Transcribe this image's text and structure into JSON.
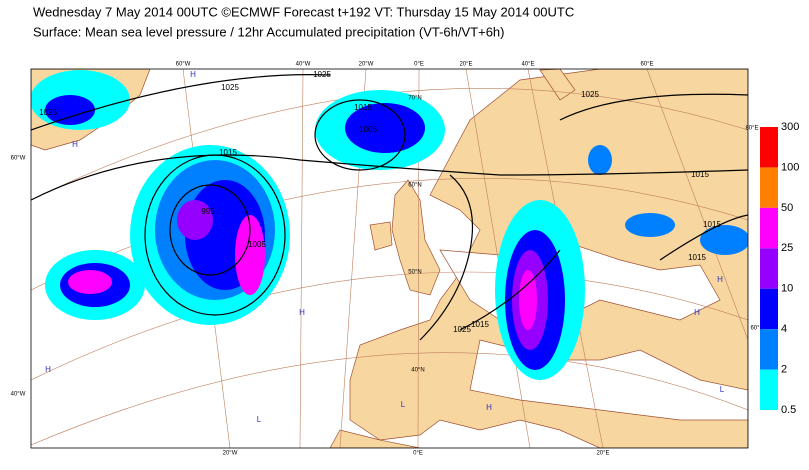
{
  "header": {
    "line1": "Wednesday 7 May 2014 00UTC ©ECMWF Forecast t+192 VT: Thursday 15 May 2014 00UTC",
    "line2": "Surface: Mean sea level pressure / 12hr Accumulated precipitation (VT-6h/VT+6h)"
  },
  "map": {
    "graticule_labels": [
      "60°W",
      "40°W",
      "20°W",
      "0°E",
      "20°E",
      "40°E",
      "60°E",
      "80°E",
      "60°W",
      "40°W",
      "20°W",
      "0°E",
      "20°E",
      "70°N",
      "60°N",
      "50°N",
      "40°N",
      "60°E"
    ],
    "isobar_labels": [
      "1025",
      "1025",
      "1025",
      "1015",
      "1005",
      "1015",
      "995",
      "1005",
      "1025",
      "1015",
      "1025",
      "1015",
      "1015",
      "1015"
    ],
    "pressure_centres": [
      "H",
      "H",
      "H",
      "H",
      "H",
      "H",
      "H",
      "L",
      "L",
      "L"
    ]
  },
  "legend": {
    "levels": [
      "300",
      "100",
      "50",
      "25",
      "10",
      "4",
      "2",
      "0.5"
    ],
    "colors": [
      "#ff0000",
      "#ff8000",
      "#ff00ff",
      "#9600fe",
      "#0000fe",
      "#0080ff",
      "#00ffff"
    ]
  }
}
